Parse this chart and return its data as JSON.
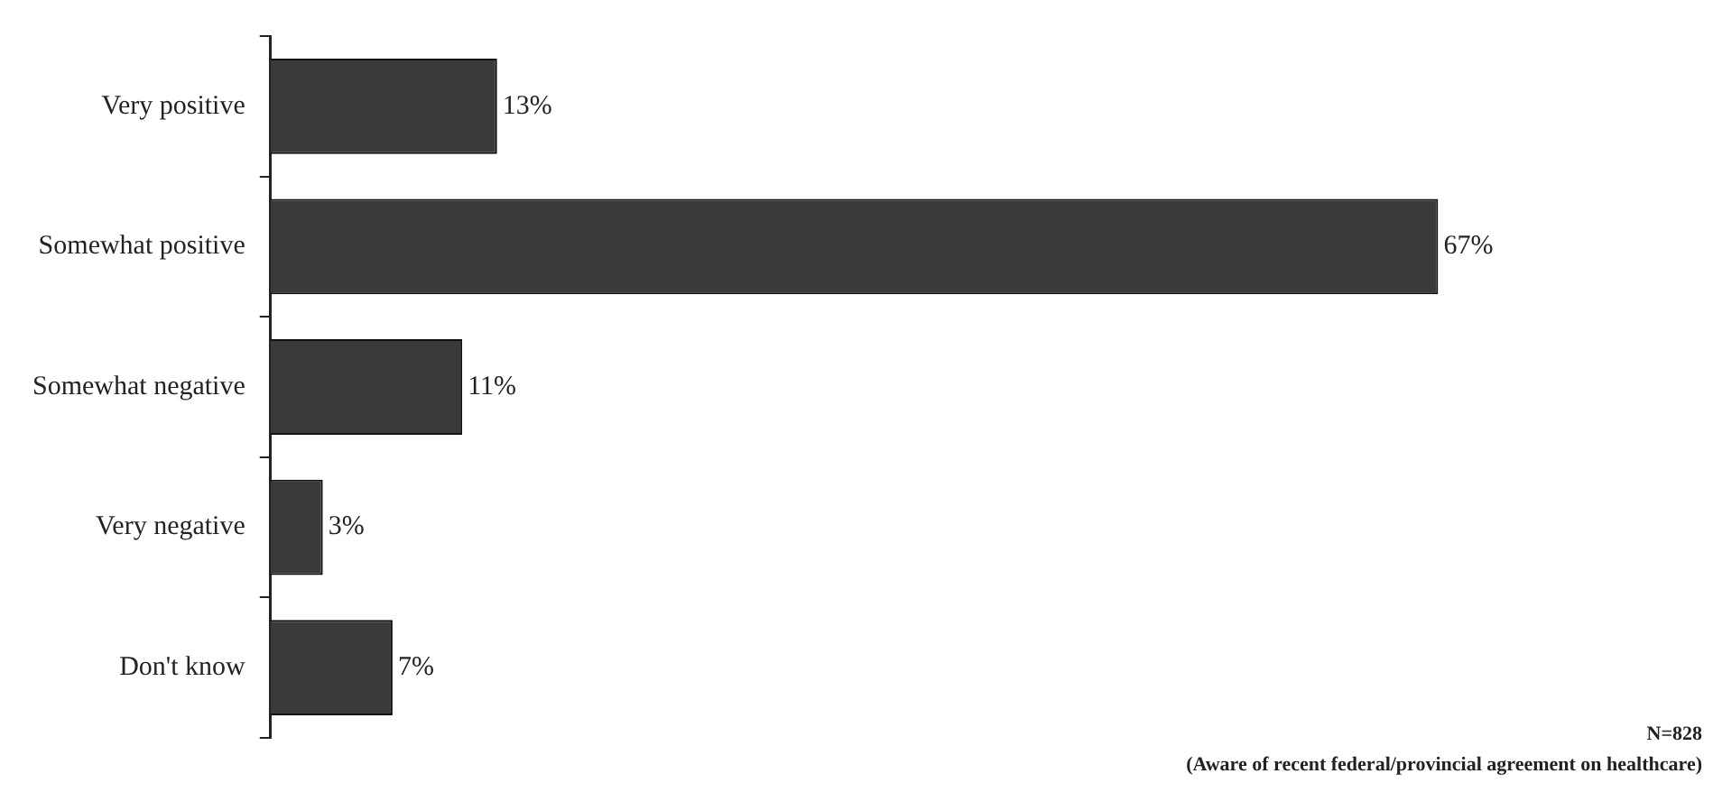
{
  "chart_data": {
    "type": "bar",
    "orientation": "horizontal",
    "categories": [
      "Very positive",
      "Somewhat positive",
      "Somewhat negative",
      "Very negative",
      "Don't know"
    ],
    "values": [
      13,
      67,
      11,
      3,
      7
    ],
    "value_labels": [
      "13%",
      "67%",
      "11%",
      "3%",
      "7%"
    ],
    "color": "#3a3a3a",
    "legend": false,
    "annotations": [
      "N=828",
      "(Aware of recent federal/provincial agreement on healthcare)"
    ]
  }
}
